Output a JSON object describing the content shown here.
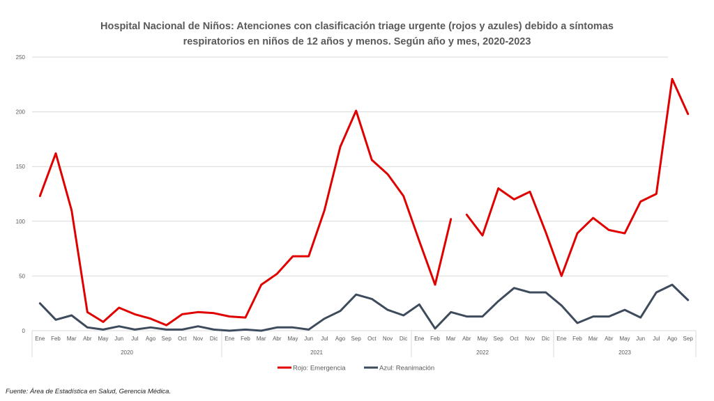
{
  "title_line1": "Hospital Nacional de Niños: Atenciones con clasificación triage urgente (rojos y azules) debido a síntomas",
  "title_line2": "respiratorios  en niños de 12 años y menos. Según año y mes, 2020-2023",
  "source": "Fuente: Área de Estadística en Salud, Gerencia Médica.",
  "chart_data": {
    "type": "line",
    "title": "Hospital Nacional de Niños: Atenciones con clasificación triage urgente (rojos y azules) debido a síntomas respiratorios en niños de 12 años y menos. Según año y mes, 2020-2023",
    "xlabel": "",
    "ylabel": "",
    "ylim": [
      0,
      250
    ],
    "yticks": [
      0,
      50,
      100,
      150,
      200,
      250
    ],
    "grid": true,
    "legend_position": "bottom",
    "year_groups": [
      {
        "year": "2020",
        "months": [
          "Ene",
          "Feb",
          "Mar",
          "Abr",
          "May",
          "Jun",
          "Jul",
          "Ago",
          "Sep",
          "Oct",
          "Nov",
          "Dic"
        ]
      },
      {
        "year": "2021",
        "months": [
          "Ene",
          "Feb",
          "Mar",
          "Abr",
          "May",
          "Jun",
          "Jul",
          "Ago",
          "Sep",
          "Oct",
          "Nov",
          "Dic"
        ]
      },
      {
        "year": "2022",
        "months": [
          "Ene",
          "Feb",
          "Mar",
          "Abr",
          "May",
          "Sep",
          "Oct",
          "Nov",
          "Dic"
        ]
      },
      {
        "year": "2023",
        "months": [
          "Ene",
          "Feb",
          "Mar",
          "Abr",
          "May",
          "Jun",
          "Jul",
          "Ago",
          "Sep"
        ]
      }
    ],
    "series": [
      {
        "name": "Rojo: Emergencia",
        "color": "#e00000",
        "values": [
          123,
          162,
          110,
          17,
          8,
          21,
          15,
          11,
          5,
          15,
          17,
          16,
          13,
          12,
          42,
          52,
          68,
          68,
          110,
          168,
          201,
          156,
          143,
          123,
          82,
          42,
          102,
          106,
          87,
          130,
          120,
          127,
          90,
          50,
          89,
          103,
          92,
          89,
          118,
          125,
          230,
          198
        ],
        "gap_after_index": [
          26
        ]
      },
      {
        "name": "Azul: Reanimación",
        "color": "#3d4b5c",
        "values": [
          25,
          10,
          14,
          3,
          1,
          4,
          1,
          3,
          1,
          1,
          4,
          1,
          0,
          1,
          0,
          3,
          3,
          1,
          11,
          18,
          33,
          29,
          19,
          14,
          24,
          2,
          17,
          13,
          13,
          27,
          39,
          35,
          35,
          23,
          7,
          13,
          13,
          19,
          12,
          35,
          42,
          28
        ],
        "gap_after_index": []
      }
    ]
  }
}
